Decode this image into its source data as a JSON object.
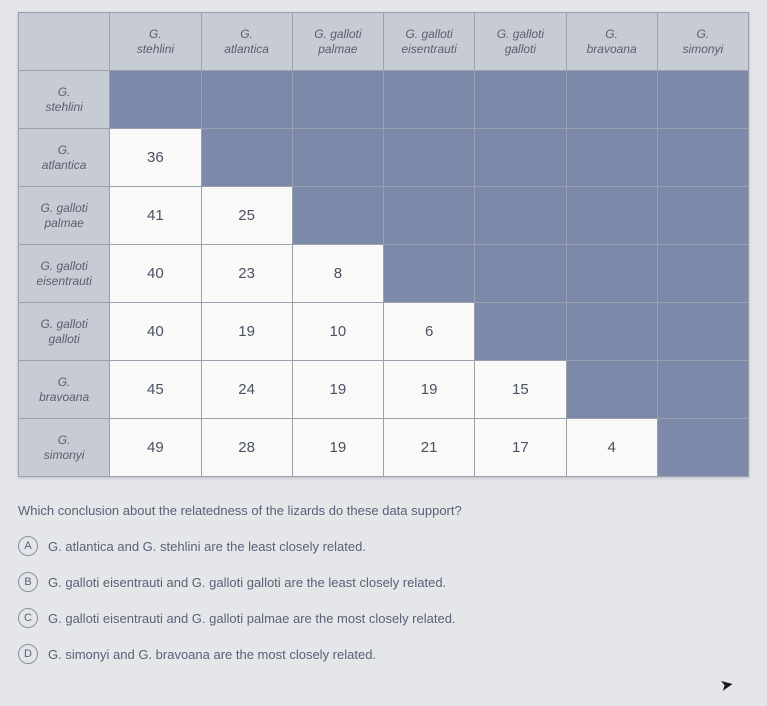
{
  "table": {
    "col_headers": [
      "G.\nstehlini",
      "G.\natlantica",
      "G. galloti\npalmae",
      "G. galloti\neisentrauti",
      "G. galloti\ngalloti",
      "G.\nbravoana",
      "G.\nsimonyi"
    ],
    "rows": [
      {
        "head": "G.\nstehlini",
        "cells": [
          null,
          null,
          null,
          null,
          null,
          null,
          null
        ]
      },
      {
        "head": "G.\natlantica",
        "cells": [
          "36",
          null,
          null,
          null,
          null,
          null,
          null
        ]
      },
      {
        "head": "G. galloti\npalmae",
        "cells": [
          "41",
          "25",
          null,
          null,
          null,
          null,
          null
        ]
      },
      {
        "head": "G. galloti\neisentrauti",
        "cells": [
          "40",
          "23",
          "8",
          null,
          null,
          null,
          null
        ]
      },
      {
        "head": "G. galloti\ngalloti",
        "cells": [
          "40",
          "19",
          "10",
          "6",
          null,
          null,
          null
        ]
      },
      {
        "head": "G.\nbravoana",
        "cells": [
          "45",
          "24",
          "19",
          "19",
          "15",
          null,
          null
        ]
      },
      {
        "head": "G.\nsimonyi",
        "cells": [
          "49",
          "28",
          "19",
          "21",
          "17",
          "4",
          null
        ]
      }
    ]
  },
  "question": "Which conclusion about the relatedness of the lizards do these data support?",
  "choices": [
    {
      "letter": "A",
      "text": "G. atlantica and G. stehlini are the least closely related."
    },
    {
      "letter": "B",
      "text": "G. galloti eisentrauti and G. galloti galloti are the least closely related."
    },
    {
      "letter": "C",
      "text": "G. galloti eisentrauti and G. galloti palmae are the most closely related."
    },
    {
      "letter": "D",
      "text": "G. simonyi and G. bravoana are the most closely related."
    }
  ]
}
